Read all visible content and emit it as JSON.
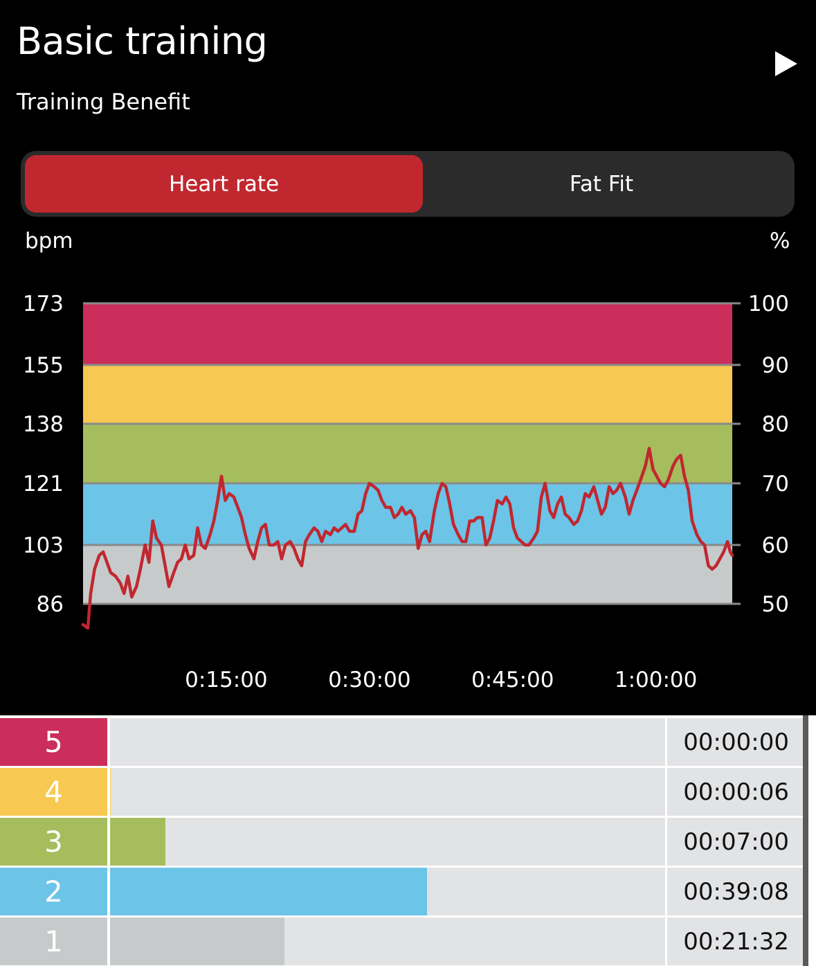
{
  "header": {
    "title": "Basic training",
    "subtitle": "Training Benefit"
  },
  "tabs": [
    {
      "label": "Heart rate",
      "active": true
    },
    {
      "label": "Fat Fit",
      "active": false
    }
  ],
  "colors": {
    "zone5": "#cb2e5a",
    "zone4": "#f7c852",
    "zone3": "#a5bd5d",
    "zone2": "#6cc4e7",
    "zone1": "#c7cacb",
    "line": "#c1272f",
    "tab_active": "#c1272f"
  },
  "chart_data": {
    "type": "line",
    "y_unit_left": "bpm",
    "y_unit_right": "%",
    "y_ticks_left": [
      "173",
      "155",
      "138",
      "121",
      "103",
      "86"
    ],
    "y_ticks_right": [
      "100",
      "90",
      "80",
      "70",
      "60",
      "50"
    ],
    "x_ticks": [
      "0:15:00",
      "0:30:00",
      "0:45:00",
      "1:00:00"
    ],
    "ylim": [
      86,
      173
    ],
    "xlim_minutes": [
      0,
      68
    ],
    "zones": [
      {
        "zone": 5,
        "from": 155,
        "to": 173
      },
      {
        "zone": 4,
        "from": 138,
        "to": 155
      },
      {
        "zone": 3,
        "from": 121,
        "to": 138
      },
      {
        "zone": 2,
        "from": 103,
        "to": 121
      },
      {
        "zone": 1,
        "from": 86,
        "to": 103
      }
    ],
    "series": [
      {
        "values": [
          [
            0.0,
            80
          ],
          [
            0.5,
            79
          ],
          [
            0.8,
            89
          ],
          [
            1.2,
            96
          ],
          [
            1.7,
            100
          ],
          [
            2.1,
            101
          ],
          [
            2.5,
            98
          ],
          [
            2.9,
            95
          ],
          [
            3.4,
            94
          ],
          [
            3.9,
            92
          ],
          [
            4.3,
            89
          ],
          [
            4.7,
            94
          ],
          [
            5.1,
            88
          ],
          [
            5.6,
            91
          ],
          [
            6.0,
            96
          ],
          [
            6.5,
            103
          ],
          [
            6.9,
            98
          ],
          [
            7.3,
            110
          ],
          [
            7.7,
            105
          ],
          [
            8.2,
            103
          ],
          [
            8.6,
            97
          ],
          [
            9.0,
            91
          ],
          [
            9.5,
            95
          ],
          [
            9.9,
            98
          ],
          [
            10.3,
            99
          ],
          [
            10.7,
            103
          ],
          [
            11.1,
            99
          ],
          [
            11.6,
            100
          ],
          [
            12.0,
            108
          ],
          [
            12.4,
            103
          ],
          [
            12.8,
            102
          ],
          [
            13.3,
            106
          ],
          [
            13.7,
            110
          ],
          [
            14.1,
            116
          ],
          [
            14.5,
            123
          ],
          [
            14.9,
            116
          ],
          [
            15.3,
            118
          ],
          [
            15.8,
            117
          ],
          [
            16.2,
            114
          ],
          [
            16.6,
            111
          ],
          [
            17.0,
            106
          ],
          [
            17.4,
            102
          ],
          [
            17.9,
            99
          ],
          [
            18.3,
            104
          ],
          [
            18.7,
            108
          ],
          [
            19.1,
            109
          ],
          [
            19.5,
            103
          ],
          [
            20.0,
            103
          ],
          [
            20.4,
            104
          ],
          [
            20.8,
            99
          ],
          [
            21.2,
            103
          ],
          [
            21.7,
            104
          ],
          [
            22.1,
            102
          ],
          [
            22.5,
            99
          ],
          [
            22.9,
            97
          ],
          [
            23.3,
            104
          ],
          [
            23.7,
            106
          ],
          [
            24.2,
            108
          ],
          [
            24.6,
            107
          ],
          [
            25.0,
            104
          ],
          [
            25.4,
            107
          ],
          [
            25.9,
            106
          ],
          [
            26.3,
            108
          ],
          [
            26.7,
            107
          ],
          [
            27.1,
            108
          ],
          [
            27.5,
            109
          ],
          [
            27.9,
            107
          ],
          [
            28.4,
            107
          ],
          [
            28.8,
            112
          ],
          [
            29.2,
            113
          ],
          [
            29.6,
            118
          ],
          [
            30.0,
            121
          ],
          [
            30.5,
            120
          ],
          [
            30.9,
            119
          ],
          [
            31.3,
            116
          ],
          [
            31.7,
            114
          ],
          [
            32.2,
            114
          ],
          [
            32.6,
            111
          ],
          [
            33.0,
            112
          ],
          [
            33.4,
            114
          ],
          [
            33.8,
            112
          ],
          [
            34.3,
            113
          ],
          [
            34.7,
            111
          ],
          [
            35.1,
            102
          ],
          [
            35.5,
            106
          ],
          [
            35.9,
            107
          ],
          [
            36.3,
            104
          ],
          [
            36.8,
            113
          ],
          [
            37.2,
            118
          ],
          [
            37.6,
            121
          ],
          [
            38.0,
            120
          ],
          [
            38.4,
            115
          ],
          [
            38.8,
            109
          ],
          [
            39.3,
            106
          ],
          [
            39.7,
            104
          ],
          [
            40.1,
            104
          ],
          [
            40.5,
            110
          ],
          [
            40.9,
            110
          ],
          [
            41.3,
            111
          ],
          [
            41.8,
            111
          ],
          [
            42.2,
            103
          ],
          [
            42.6,
            105
          ],
          [
            43.0,
            110
          ],
          [
            43.4,
            116
          ],
          [
            43.9,
            115
          ],
          [
            44.3,
            117
          ],
          [
            44.7,
            115
          ],
          [
            45.1,
            108
          ],
          [
            45.5,
            105
          ],
          [
            45.9,
            104
          ],
          [
            46.3,
            103
          ],
          [
            46.7,
            103
          ],
          [
            47.2,
            105
          ],
          [
            47.6,
            107
          ],
          [
            48.0,
            117
          ],
          [
            48.4,
            121
          ],
          [
            48.9,
            113
          ],
          [
            49.3,
            111
          ],
          [
            49.7,
            115
          ],
          [
            50.1,
            117
          ],
          [
            50.5,
            112
          ],
          [
            50.9,
            111
          ],
          [
            51.4,
            109
          ],
          [
            51.8,
            110
          ],
          [
            52.2,
            113
          ],
          [
            52.6,
            118
          ],
          [
            53.0,
            117
          ],
          [
            53.5,
            120
          ],
          [
            53.9,
            116
          ],
          [
            54.3,
            112
          ],
          [
            54.7,
            114
          ],
          [
            55.1,
            120
          ],
          [
            55.5,
            118
          ],
          [
            55.9,
            119
          ],
          [
            56.3,
            121
          ],
          [
            56.8,
            117
          ],
          [
            57.2,
            112
          ],
          [
            57.6,
            116
          ],
          [
            58.0,
            119
          ],
          [
            58.4,
            122
          ],
          [
            58.9,
            126
          ],
          [
            59.3,
            131
          ],
          [
            59.7,
            125
          ],
          [
            60.1,
            123
          ],
          [
            60.5,
            121
          ],
          [
            60.9,
            120
          ],
          [
            61.3,
            122
          ],
          [
            61.8,
            126
          ],
          [
            62.2,
            128
          ],
          [
            62.6,
            129
          ],
          [
            63.0,
            123
          ],
          [
            63.4,
            119
          ],
          [
            63.8,
            110
          ],
          [
            64.3,
            106
          ],
          [
            64.7,
            104
          ],
          [
            65.1,
            103
          ],
          [
            65.5,
            97
          ],
          [
            65.9,
            96
          ],
          [
            66.3,
            97
          ],
          [
            66.7,
            99
          ],
          [
            67.1,
            101
          ],
          [
            67.5,
            104
          ],
          [
            67.8,
            101
          ],
          [
            68.0,
            100
          ]
        ]
      }
    ]
  },
  "zone_summary": [
    {
      "zone": "5",
      "time": "00:00:00",
      "fraction": 0.0,
      "color": "#cb2e5a"
    },
    {
      "zone": "4",
      "time": "00:00:06",
      "fraction": 0.001,
      "color": "#f7c852"
    },
    {
      "zone": "3",
      "time": "00:07:00",
      "fraction": 0.1,
      "color": "#a5bd5d"
    },
    {
      "zone": "2",
      "time": "00:39:08",
      "fraction": 0.571,
      "color": "#6cc4e7"
    },
    {
      "zone": "1",
      "time": "00:21:32",
      "fraction": 0.314,
      "color": "#c7cacb"
    }
  ]
}
